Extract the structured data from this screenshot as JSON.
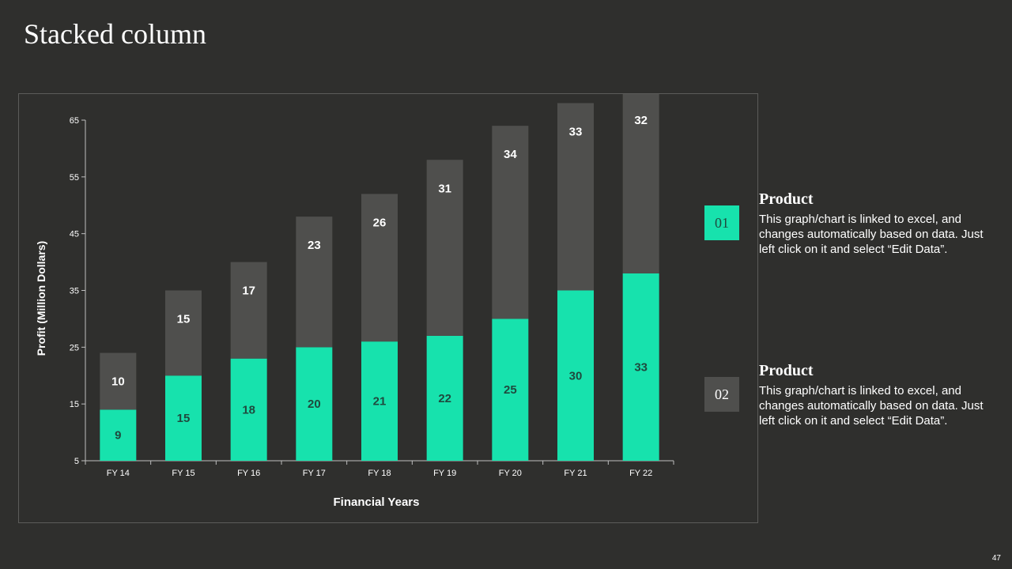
{
  "slide": {
    "title": "Stacked column",
    "page_number": "47"
  },
  "legend": [
    {
      "badge": "01",
      "heading": "Product",
      "description": "This graph/chart is linked to excel, and changes automatically based on data. Just left click on it and select “Edit Data”.",
      "color": "#17e2ad"
    },
    {
      "badge": "02",
      "heading": "Product",
      "description": "This graph/chart is linked to excel, and changes automatically based on data. Just left click on it and select “Edit Data”.",
      "color": "#4f4f4d"
    }
  ],
  "chart_data": {
    "type": "bar",
    "stacked": true,
    "categories": [
      "FY 14",
      "FY 15",
      "FY 16",
      "FY 17",
      "FY 18",
      "FY 19",
      "FY 20",
      "FY 21",
      "FY 22"
    ],
    "series": [
      {
        "name": "Product 01",
        "values": [
          9,
          15,
          18,
          20,
          21,
          22,
          25,
          30,
          33
        ],
        "color": "#17e2ad",
        "label_color": "#1f4a3e"
      },
      {
        "name": "Product 02",
        "values": [
          10,
          15,
          17,
          23,
          26,
          31,
          34,
          33,
          32
        ],
        "color": "#4f4f4d",
        "label_color": "#ffffff"
      }
    ],
    "xlabel": "Financial Years",
    "ylabel": "Profit (Million Dollars)",
    "ylim": [
      5,
      65
    ],
    "yticks": [
      5,
      15,
      25,
      35,
      45,
      55,
      65
    ],
    "grid": false,
    "legend": "right"
  }
}
